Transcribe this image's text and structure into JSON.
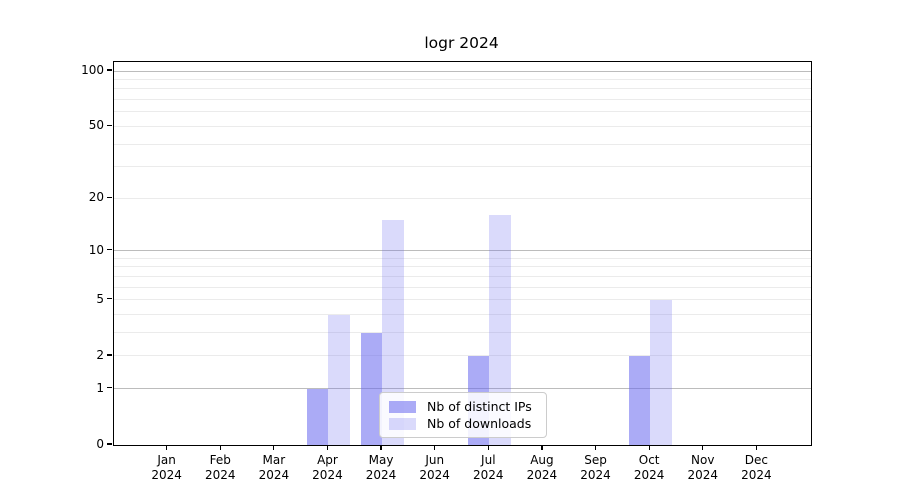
{
  "title": "logr 2024",
  "chart_data": {
    "type": "bar",
    "title": "logr 2024",
    "categories": [
      "Jan",
      "Feb",
      "Mar",
      "Apr",
      "May",
      "Jun",
      "Jul",
      "Aug",
      "Sep",
      "Oct",
      "Nov",
      "Dec"
    ],
    "category_year": "2024",
    "series": [
      {
        "name": "Nb of distinct IPs",
        "color": "rgba(102,102,238,0.55)",
        "values": [
          0,
          0,
          0,
          1,
          3,
          0,
          2,
          0,
          0,
          2,
          0,
          0
        ]
      },
      {
        "name": "Nb of downloads",
        "color": "rgba(102,102,238,0.24)",
        "values": [
          0,
          0,
          0,
          4,
          15,
          0,
          16,
          0,
          0,
          5,
          0,
          0
        ]
      }
    ],
    "yscale": "log1p",
    "ytick_values": [
      0,
      1,
      2,
      5,
      10,
      20,
      50,
      100
    ],
    "ytick_labels": [
      "0",
      "1",
      "2",
      "5",
      "10",
      "20",
      "50",
      "100"
    ],
    "major_gridlines": [
      1,
      10,
      100
    ],
    "minor_gridlines": [
      2,
      3,
      4,
      5,
      6,
      7,
      8,
      9,
      20,
      30,
      40,
      50,
      60,
      70,
      80,
      90
    ],
    "legend": {
      "position": "lower-center",
      "entries": [
        "Nb of distinct IPs",
        "Nb of downloads"
      ]
    },
    "colors": {
      "major_grid": "#bcbcbc",
      "minor_grid": "#ebebeb",
      "axis": "#000000",
      "background": "#ffffff",
      "text": "#000000"
    },
    "grid": "on",
    "xlabel": "",
    "ylabel": ""
  }
}
